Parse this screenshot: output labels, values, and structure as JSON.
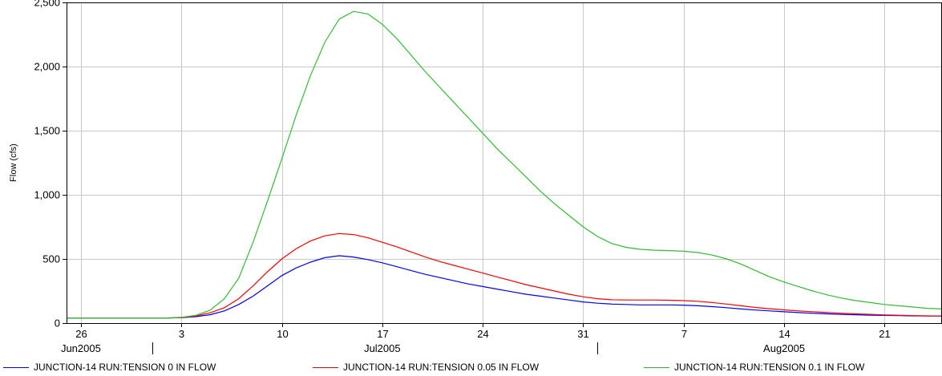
{
  "chart_data": {
    "type": "line",
    "ylabel": "Flow (cfs)",
    "ylim": [
      0,
      2500
    ],
    "yticks": [
      0,
      500,
      1000,
      1500,
      2000,
      2500
    ],
    "ytick_labels": [
      "0",
      "500",
      "1,000",
      "1,500",
      "2,000",
      "2,500"
    ],
    "xlim": [
      "2005-06-25",
      "2005-08-25"
    ],
    "xticks": [
      {
        "date": "2005-06-26",
        "label": "26"
      },
      {
        "date": "2005-07-03",
        "label": "3"
      },
      {
        "date": "2005-07-10",
        "label": "10"
      },
      {
        "date": "2005-07-17",
        "label": "17"
      },
      {
        "date": "2005-07-24",
        "label": "24"
      },
      {
        "date": "2005-07-31",
        "label": "31"
      },
      {
        "date": "2005-08-07",
        "label": "7"
      },
      {
        "date": "2005-08-14",
        "label": "14"
      },
      {
        "date": "2005-08-21",
        "label": "21"
      }
    ],
    "month_labels": [
      {
        "date": "2005-06-26",
        "label": "Jun2005"
      },
      {
        "date": "2005-07-17",
        "label": "Jul2005"
      },
      {
        "date": "2005-08-14",
        "label": "Aug2005"
      }
    ],
    "month_separators": [
      "2005-07-01",
      "2005-08-01"
    ],
    "grid": true,
    "legend_position": "bottom",
    "series": [
      {
        "name": "JUNCTION-14 RUN:TENSION 0 IN FLOW",
        "color": "#0000ff",
        "points": [
          [
            "2005-06-25",
            40
          ],
          [
            "2005-07-02",
            40
          ],
          [
            "2005-07-03",
            42
          ],
          [
            "2005-07-04",
            50
          ],
          [
            "2005-07-05",
            65
          ],
          [
            "2005-07-06",
            95
          ],
          [
            "2005-07-07",
            145
          ],
          [
            "2005-07-08",
            210
          ],
          [
            "2005-07-09",
            290
          ],
          [
            "2005-07-10",
            370
          ],
          [
            "2005-07-11",
            430
          ],
          [
            "2005-07-12",
            475
          ],
          [
            "2005-07-13",
            510
          ],
          [
            "2005-07-14",
            525
          ],
          [
            "2005-07-15",
            515
          ],
          [
            "2005-07-16",
            495
          ],
          [
            "2005-07-17",
            470
          ],
          [
            "2005-07-18",
            440
          ],
          [
            "2005-07-19",
            410
          ],
          [
            "2005-07-20",
            380
          ],
          [
            "2005-07-21",
            355
          ],
          [
            "2005-07-22",
            330
          ],
          [
            "2005-07-23",
            305
          ],
          [
            "2005-07-24",
            285
          ],
          [
            "2005-07-25",
            265
          ],
          [
            "2005-07-26",
            245
          ],
          [
            "2005-07-27",
            225
          ],
          [
            "2005-07-28",
            210
          ],
          [
            "2005-07-29",
            195
          ],
          [
            "2005-07-30",
            180
          ],
          [
            "2005-07-31",
            165
          ],
          [
            "2005-08-01",
            155
          ],
          [
            "2005-08-02",
            148
          ],
          [
            "2005-08-03",
            145
          ],
          [
            "2005-08-04",
            142
          ],
          [
            "2005-08-05",
            142
          ],
          [
            "2005-08-06",
            142
          ],
          [
            "2005-08-07",
            140
          ],
          [
            "2005-08-08",
            135
          ],
          [
            "2005-08-09",
            128
          ],
          [
            "2005-08-10",
            120
          ],
          [
            "2005-08-11",
            110
          ],
          [
            "2005-08-12",
            102
          ],
          [
            "2005-08-13",
            95
          ],
          [
            "2005-08-14",
            88
          ],
          [
            "2005-08-15",
            82
          ],
          [
            "2005-08-16",
            76
          ],
          [
            "2005-08-17",
            72
          ],
          [
            "2005-08-18",
            68
          ],
          [
            "2005-08-19",
            65
          ],
          [
            "2005-08-20",
            62
          ],
          [
            "2005-08-21",
            60
          ],
          [
            "2005-08-22",
            58
          ],
          [
            "2005-08-23",
            56
          ],
          [
            "2005-08-24",
            55
          ],
          [
            "2005-08-25",
            55
          ]
        ]
      },
      {
        "name": "JUNCTION-14 RUN:TENSION 0.05 IN FLOW",
        "color": "#ff0000",
        "points": [
          [
            "2005-06-25",
            40
          ],
          [
            "2005-07-02",
            40
          ],
          [
            "2005-07-03",
            43
          ],
          [
            "2005-07-04",
            55
          ],
          [
            "2005-07-05",
            80
          ],
          [
            "2005-07-06",
            120
          ],
          [
            "2005-07-07",
            190
          ],
          [
            "2005-07-08",
            290
          ],
          [
            "2005-07-09",
            400
          ],
          [
            "2005-07-10",
            500
          ],
          [
            "2005-07-11",
            580
          ],
          [
            "2005-07-12",
            640
          ],
          [
            "2005-07-13",
            680
          ],
          [
            "2005-07-14",
            698
          ],
          [
            "2005-07-15",
            690
          ],
          [
            "2005-07-16",
            665
          ],
          [
            "2005-07-17",
            630
          ],
          [
            "2005-07-18",
            595
          ],
          [
            "2005-07-19",
            555
          ],
          [
            "2005-07-20",
            515
          ],
          [
            "2005-07-21",
            480
          ],
          [
            "2005-07-22",
            450
          ],
          [
            "2005-07-23",
            420
          ],
          [
            "2005-07-24",
            390
          ],
          [
            "2005-07-25",
            360
          ],
          [
            "2005-07-26",
            330
          ],
          [
            "2005-07-27",
            300
          ],
          [
            "2005-07-28",
            275
          ],
          [
            "2005-07-29",
            250
          ],
          [
            "2005-07-30",
            225
          ],
          [
            "2005-07-31",
            205
          ],
          [
            "2005-08-01",
            190
          ],
          [
            "2005-08-02",
            182
          ],
          [
            "2005-08-03",
            180
          ],
          [
            "2005-08-04",
            180
          ],
          [
            "2005-08-05",
            180
          ],
          [
            "2005-08-06",
            178
          ],
          [
            "2005-08-07",
            175
          ],
          [
            "2005-08-08",
            170
          ],
          [
            "2005-08-09",
            160
          ],
          [
            "2005-08-10",
            148
          ],
          [
            "2005-08-11",
            135
          ],
          [
            "2005-08-12",
            122
          ],
          [
            "2005-08-13",
            112
          ],
          [
            "2005-08-14",
            103
          ],
          [
            "2005-08-15",
            95
          ],
          [
            "2005-08-16",
            88
          ],
          [
            "2005-08-17",
            82
          ],
          [
            "2005-08-18",
            77
          ],
          [
            "2005-08-19",
            72
          ],
          [
            "2005-08-20",
            68
          ],
          [
            "2005-08-21",
            64
          ],
          [
            "2005-08-22",
            61
          ],
          [
            "2005-08-23",
            58
          ],
          [
            "2005-08-24",
            56
          ],
          [
            "2005-08-25",
            55
          ]
        ]
      },
      {
        "name": "JUNCTION-14 RUN:TENSION 0.1 IN FLOW",
        "color": "#33bb33",
        "points": [
          [
            "2005-06-25",
            40
          ],
          [
            "2005-07-02",
            40
          ],
          [
            "2005-07-03",
            45
          ],
          [
            "2005-07-04",
            60
          ],
          [
            "2005-07-05",
            100
          ],
          [
            "2005-07-06",
            190
          ],
          [
            "2005-07-07",
            350
          ],
          [
            "2005-07-08",
            630
          ],
          [
            "2005-07-09",
            950
          ],
          [
            "2005-07-10",
            1280
          ],
          [
            "2005-07-11",
            1620
          ],
          [
            "2005-07-12",
            1930
          ],
          [
            "2005-07-13",
            2190
          ],
          [
            "2005-07-14",
            2370
          ],
          [
            "2005-07-15",
            2430
          ],
          [
            "2005-07-16",
            2410
          ],
          [
            "2005-07-17",
            2330
          ],
          [
            "2005-07-18",
            2220
          ],
          [
            "2005-07-19",
            2090
          ],
          [
            "2005-07-20",
            1960
          ],
          [
            "2005-07-21",
            1840
          ],
          [
            "2005-07-22",
            1720
          ],
          [
            "2005-07-23",
            1600
          ],
          [
            "2005-07-24",
            1480
          ],
          [
            "2005-07-25",
            1360
          ],
          [
            "2005-07-26",
            1250
          ],
          [
            "2005-07-27",
            1140
          ],
          [
            "2005-07-28",
            1030
          ],
          [
            "2005-07-29",
            930
          ],
          [
            "2005-07-30",
            840
          ],
          [
            "2005-07-31",
            750
          ],
          [
            "2005-08-01",
            675
          ],
          [
            "2005-08-02",
            620
          ],
          [
            "2005-08-03",
            590
          ],
          [
            "2005-08-04",
            575
          ],
          [
            "2005-08-05",
            568
          ],
          [
            "2005-08-06",
            565
          ],
          [
            "2005-08-07",
            560
          ],
          [
            "2005-08-08",
            550
          ],
          [
            "2005-08-09",
            530
          ],
          [
            "2005-08-10",
            500
          ],
          [
            "2005-08-11",
            460
          ],
          [
            "2005-08-12",
            410
          ],
          [
            "2005-08-13",
            360
          ],
          [
            "2005-08-14",
            320
          ],
          [
            "2005-08-15",
            285
          ],
          [
            "2005-08-16",
            250
          ],
          [
            "2005-08-17",
            220
          ],
          [
            "2005-08-18",
            195
          ],
          [
            "2005-08-19",
            175
          ],
          [
            "2005-08-20",
            160
          ],
          [
            "2005-08-21",
            145
          ],
          [
            "2005-08-22",
            135
          ],
          [
            "2005-08-23",
            125
          ],
          [
            "2005-08-24",
            115
          ],
          [
            "2005-08-25",
            110
          ]
        ]
      }
    ]
  }
}
